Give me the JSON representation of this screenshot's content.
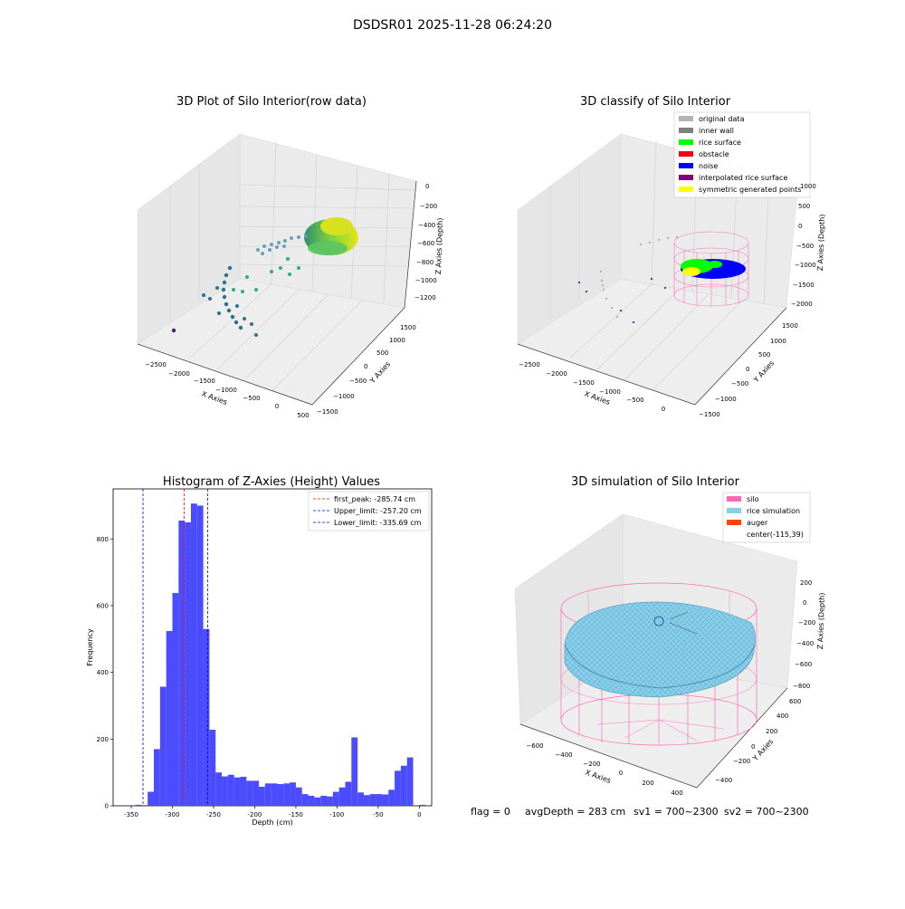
{
  "figure": {
    "suptitle": "DSDSR01 2025-11-28 06:24:20",
    "footer": {
      "flag": "flag = 0",
      "avg_depth": "avgDepth = 283 cm",
      "sv1": "sv1 = 700~2300",
      "sv2": "sv2 = 700~2300"
    }
  },
  "colors": {
    "original_data": "#b3b3b3",
    "inner_wall": "#808080",
    "rice_surface": "#00ff00",
    "obstacle": "#ff0000",
    "noise": "#0000ff",
    "interpolated_rice_surface": "#800080",
    "symmetric_generated_points": "#ffff00",
    "silo": "#ff69b4",
    "rice_simulation": "#87ceeb",
    "auger": "#ff4500",
    "histogram_bar": "#4b4bff",
    "first_peak_line": "#ff0000",
    "limit_line": "#0000ff"
  },
  "chart_data": [
    {
      "type": "scatter",
      "subtype": "3d-scatter",
      "title": "3D Plot of Silo Interior(row data)",
      "xlabel": "X Axies",
      "ylabel": "Y Axies",
      "zlabel": "Z Axies (Depth)",
      "x_ticks": [
        "−2500",
        "−2000",
        "−1500",
        "−1000",
        "−500",
        "0",
        "500"
      ],
      "y_ticks": [
        "−1500",
        "−1000",
        "−500",
        "0",
        "500",
        "1000",
        "1500"
      ],
      "z_ticks": [
        "0",
        "−200",
        "−400",
        "−600",
        "−800",
        "−1000",
        "−1200"
      ],
      "colormap": "viridis",
      "grid": true
    },
    {
      "type": "scatter",
      "subtype": "3d-scatter",
      "title": "3D classify of Silo Interior",
      "xlabel": "X Axies",
      "ylabel": "Y Axies",
      "zlabel": "Z Axies (Depth)",
      "x_ticks": [
        "−2500",
        "−2000",
        "−1500",
        "−1000",
        "−500",
        "0"
      ],
      "y_ticks": [
        "−1500",
        "−1000",
        "−500",
        "0",
        "500",
        "1000",
        "1500"
      ],
      "z_ticks": [
        "1000",
        "500",
        "0",
        "−500",
        "−1000",
        "−1500",
        "−2000"
      ],
      "legend": [
        "original data",
        "inner wall",
        "rice surface",
        "obstacle",
        "noise",
        "interpolated rice surface",
        "symmetric generated points"
      ],
      "legend_position": "top-right",
      "grid": true
    },
    {
      "type": "bar",
      "subtype": "histogram",
      "title": "Histogram of Z-Axies (Height) Values",
      "xlabel": "Depth (cm)",
      "ylabel": "Frequency",
      "xlim": [
        -372,
        15
      ],
      "ylim": [
        0,
        950
      ],
      "x_ticks": [
        -350,
        -300,
        -250,
        -200,
        -150,
        -100,
        -50,
        0
      ],
      "y_ticks": [
        0,
        200,
        400,
        600,
        800
      ],
      "bin_width": 7.5,
      "bins": [
        [
          -345,
          3
        ],
        [
          -337.5,
          2
        ],
        [
          -330,
          42
        ],
        [
          -322.5,
          170
        ],
        [
          -315,
          357
        ],
        [
          -307.5,
          524
        ],
        [
          -300,
          638
        ],
        [
          -292.5,
          855
        ],
        [
          -285,
          850
        ],
        [
          -277.5,
          906
        ],
        [
          -270,
          900
        ],
        [
          -262.5,
          530
        ],
        [
          -255,
          228
        ],
        [
          -247.5,
          100
        ],
        [
          -240,
          88
        ],
        [
          -232.5,
          93
        ],
        [
          -225,
          85
        ],
        [
          -217.5,
          87
        ],
        [
          -210,
          75
        ],
        [
          -202.5,
          75
        ],
        [
          -195,
          57
        ],
        [
          -187.5,
          67
        ],
        [
          -180,
          67
        ],
        [
          -172.5,
          65
        ],
        [
          -165,
          67
        ],
        [
          -157.5,
          70
        ],
        [
          -150,
          55
        ],
        [
          -142.5,
          35
        ],
        [
          -135,
          30
        ],
        [
          -127.5,
          25
        ],
        [
          -120,
          30
        ],
        [
          -112.5,
          28
        ],
        [
          -105,
          42
        ],
        [
          -97.5,
          55
        ],
        [
          -90,
          72
        ],
        [
          -82.5,
          205
        ],
        [
          -75,
          40
        ],
        [
          -67.5,
          32
        ],
        [
          -60,
          35
        ],
        [
          -52.5,
          35
        ],
        [
          -45,
          34
        ],
        [
          -37.5,
          48
        ],
        [
          -30,
          105
        ],
        [
          -22.5,
          120
        ],
        [
          -15,
          145
        ],
        [
          -7.5,
          0
        ],
        [
          0,
          3
        ]
      ],
      "vlines": [
        {
          "label": "first_peak: -285.74 cm",
          "x": -285.74,
          "color": "#ff0000"
        },
        {
          "label": "Upper_limit: -257.20 cm",
          "x": -257.2,
          "color": "#0000ff"
        },
        {
          "label": "Lower_limit: -335.69 cm",
          "x": -335.69,
          "color": "#0000ff"
        }
      ],
      "legend_position": "top-right"
    },
    {
      "type": "scatter",
      "subtype": "3d-surface",
      "title": "3D simulation of Silo Interior",
      "xlabel": "X Axies",
      "ylabel": "Y Axies",
      "zlabel": "Z Axies (Depth)",
      "x_ticks": [
        "−600",
        "−400",
        "−200",
        "0",
        "200",
        "400"
      ],
      "y_ticks": [
        "−400",
        "−200",
        "0",
        "200",
        "400",
        "600"
      ],
      "z_ticks": [
        "200",
        "0",
        "−200",
        "−400",
        "−600",
        "−800"
      ],
      "legend": [
        "silo",
        "rice simulation",
        "auger",
        "center(-115,39)"
      ],
      "legend_position": "top-right",
      "grid": true
    }
  ]
}
